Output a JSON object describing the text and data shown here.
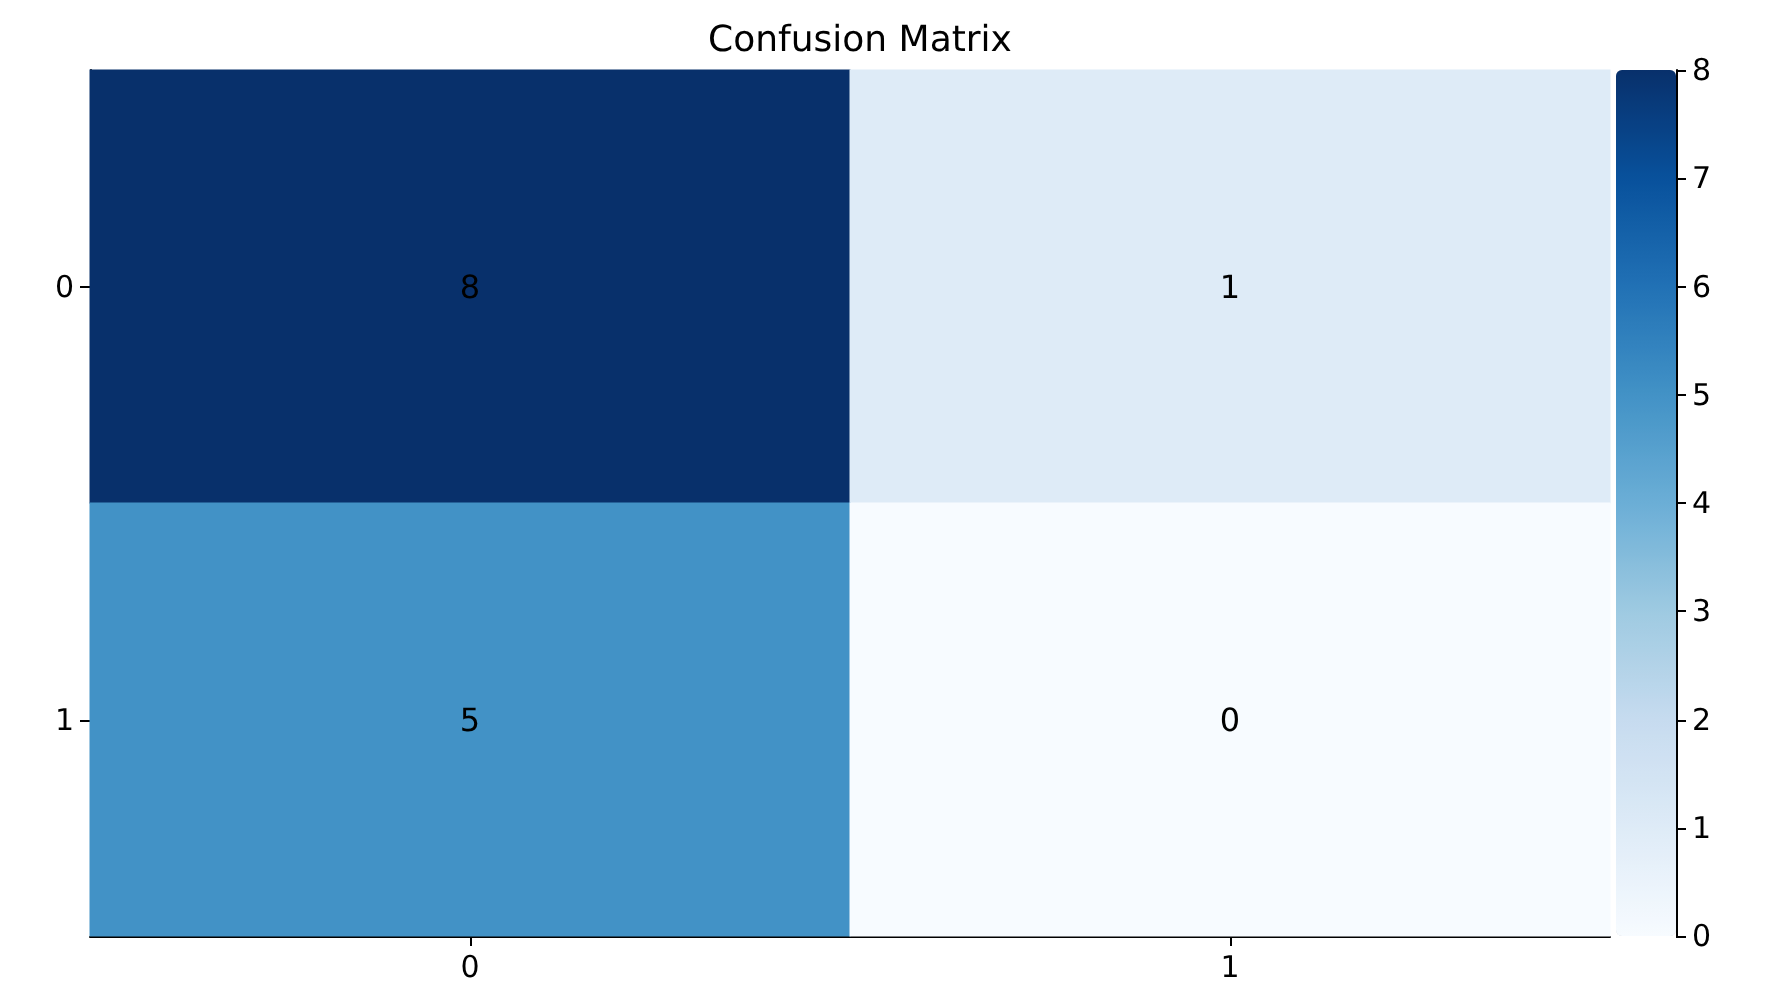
{
  "chart_data": {
    "type": "heatmap",
    "title": "Confusion Matrix",
    "categories": [
      "0",
      "1"
    ],
    "y_categories": [
      "0",
      "1"
    ],
    "cells": [
      [
        8,
        1
      ],
      [
        5,
        0
      ]
    ],
    "clim": [
      0,
      8
    ],
    "cticks": [
      0,
      1,
      2,
      3,
      4,
      5,
      6,
      7,
      8
    ],
    "data_labels": true
  }
}
